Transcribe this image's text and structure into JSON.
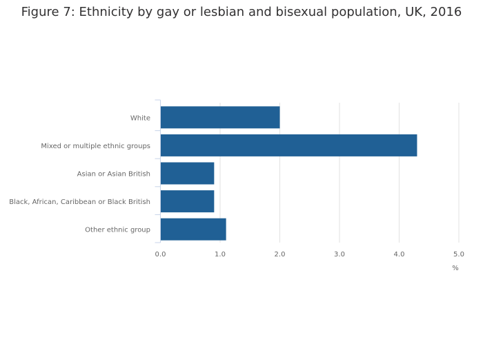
{
  "chart_data": {
    "type": "bar",
    "orientation": "horizontal",
    "title": "Figure 7: Ethnicity by gay or lesbian and bisexual population, UK, 2016",
    "categories": [
      "White",
      "Mixed or multiple ethnic groups",
      "Asian or Asian British",
      "Black, African, Caribbean or Black British",
      "Other ethnic group"
    ],
    "values": [
      2.0,
      4.3,
      0.9,
      0.9,
      1.1
    ],
    "xlabel": "%",
    "ylabel": "",
    "xlim": [
      0,
      5
    ],
    "xticks": [
      "0.0",
      "1.0",
      "2.0",
      "3.0",
      "4.0",
      "5.0"
    ],
    "grid": true,
    "bar_color": "#206095"
  }
}
